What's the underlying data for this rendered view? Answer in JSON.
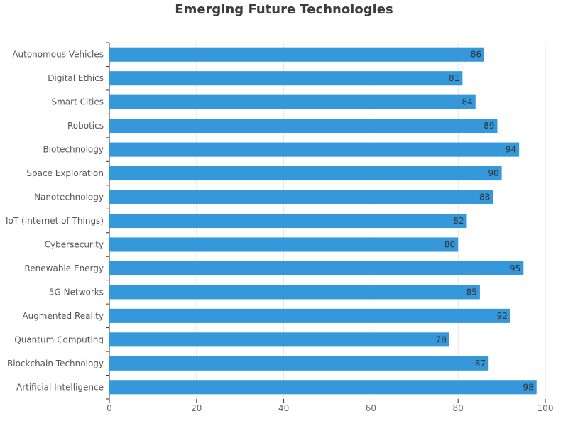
{
  "chart_data": {
    "type": "bar",
    "orientation": "horizontal",
    "title": "Emerging Future Technologies",
    "xlabel": "",
    "ylabel": "",
    "xlim": [
      0,
      100
    ],
    "x_ticks": [
      0,
      20,
      40,
      60,
      80,
      100
    ],
    "grid": true,
    "legend": "none",
    "bar_color": "#3498db",
    "categories": [
      "Autonomous Vehicles",
      "Digital Ethics",
      "Smart Cities",
      "Robotics",
      "Biotechnology",
      "Space Exploration",
      "Nanotechnology",
      "IoT (Internet of Things)",
      "Cybersecurity",
      "Renewable Energy",
      "5G Networks",
      "Augmented Reality",
      "Quantum Computing",
      "Blockchain Technology",
      "Artificial Intelligence"
    ],
    "values": [
      86,
      81,
      84,
      89,
      94,
      90,
      88,
      82,
      80,
      95,
      85,
      92,
      78,
      87,
      98
    ]
  }
}
